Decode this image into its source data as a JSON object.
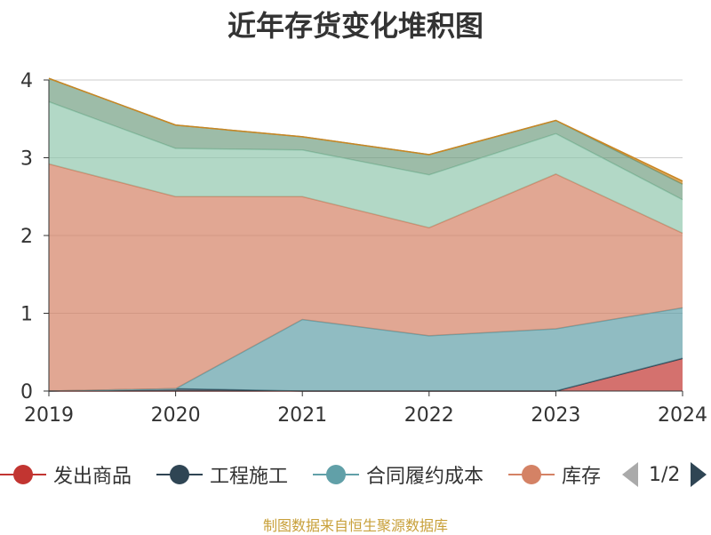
{
  "title": "近年存货变化堆积图",
  "source": "制图数据来自恒生聚源数据库",
  "pager": {
    "text": "1/2"
  },
  "chart_data": {
    "type": "area",
    "stacked": true,
    "categories": [
      "2019",
      "2020",
      "2021",
      "2022",
      "2023",
      "2024"
    ],
    "y_ticks": [
      "0",
      "1",
      "2",
      "3",
      "4"
    ],
    "ylim": [
      0,
      4
    ],
    "grid": true,
    "legend_position": "bottom",
    "series": [
      {
        "name": "发出商品",
        "color": "#c23531",
        "values": [
          0,
          0,
          0,
          0,
          0,
          0.42
        ]
      },
      {
        "name": "工程施工",
        "color": "#2f4554",
        "values": [
          0,
          0.03,
          0,
          0,
          0,
          0
        ]
      },
      {
        "name": "合同履约成本",
        "color": "#61a0a8",
        "values": [
          0,
          0,
          0.92,
          0.71,
          0.8,
          0.65
        ]
      },
      {
        "name": "库存",
        "color": "#d48265",
        "values": [
          2.92,
          2.47,
          1.58,
          1.39,
          1.99,
          0.96
        ]
      },
      {
        "name": "",
        "color": "#91c7ae",
        "values": [
          0.8,
          0.62,
          0.6,
          0.68,
          0.52,
          0.43
        ]
      },
      {
        "name": "",
        "color": "#749f83",
        "values": [
          0.3,
          0.3,
          0.17,
          0.26,
          0.17,
          0.2
        ]
      },
      {
        "name": "",
        "color": "#ca8622",
        "values": [
          0,
          0,
          0,
          0,
          0,
          0.04
        ]
      }
    ]
  }
}
